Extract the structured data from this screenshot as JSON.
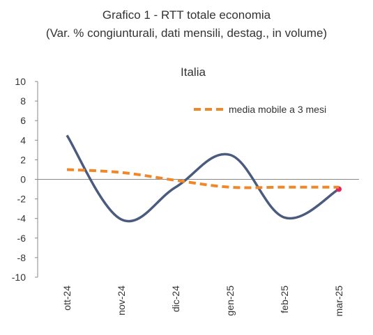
{
  "header": {
    "title": "Grafico 1 - RTT totale economia",
    "subtitle": "(Var. % congiunturali, dati mensili, destag., in volume)"
  },
  "chart_data": {
    "type": "line",
    "title": "Italia",
    "categories": [
      "ott-24",
      "nov-24",
      "dic-24",
      "gen-25",
      "feb-25",
      "mar-25"
    ],
    "ylim": [
      -10,
      10
    ],
    "yticks": [
      10,
      8,
      6,
      4,
      2,
      0,
      -2,
      -4,
      -6,
      -8,
      -10
    ],
    "legend_position": "top-right",
    "series": [
      {
        "values": [
          4.5,
          -4.1,
          -0.8,
          2.5,
          -3.9,
          -1.0
        ],
        "color": "#4a5b7e",
        "style": "solid",
        "marker_last_color": "#e0245e"
      },
      {
        "name": "media mobile a 3 mesi",
        "values": [
          1.0,
          0.7,
          -0.1,
          -0.8,
          -0.8,
          -0.8
        ],
        "color": "#f0882a",
        "style": "dashed"
      }
    ],
    "grid": false
  }
}
